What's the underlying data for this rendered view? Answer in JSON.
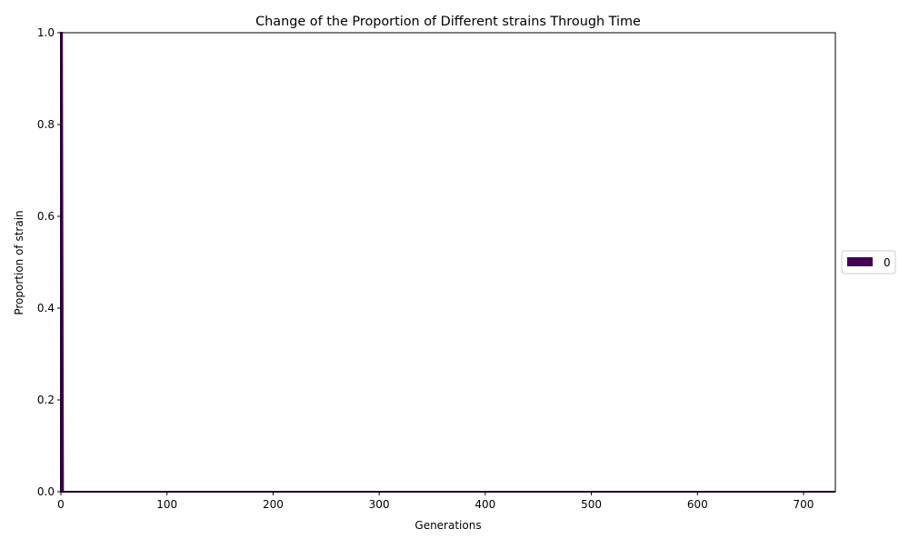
{
  "chart_data": {
    "type": "area",
    "title": "Change of the Proportion of Different strains Through Time",
    "xlabel": "Generations",
    "ylabel": "Proportion of strain",
    "xlim": [
      0,
      730
    ],
    "ylim": [
      0,
      1
    ],
    "xticks": [
      "0",
      "100",
      "200",
      "300",
      "400",
      "500",
      "600",
      "700"
    ],
    "xtick_values": [
      0,
      100,
      200,
      300,
      400,
      500,
      600,
      700
    ],
    "yticks": [
      "0.0",
      "0.2",
      "0.4",
      "0.6",
      "0.8",
      "1.0"
    ],
    "ytick_values": [
      0,
      0.2,
      0.4,
      0.6,
      0.8,
      1.0
    ],
    "grid": false,
    "stacked": true,
    "legend_position": "outside-right-center",
    "series": [
      {
        "name": "0",
        "color": "#440154",
        "x": [
          0,
          1,
          2,
          730
        ],
        "values": [
          1,
          1,
          0,
          0
        ]
      }
    ]
  }
}
